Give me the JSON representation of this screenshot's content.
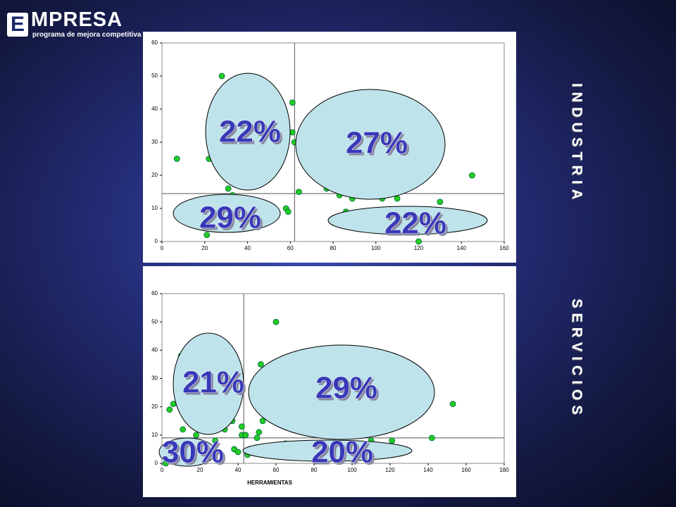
{
  "logo": {
    "letter": "E",
    "title": "MPRESA",
    "subtitle": "programa de mejora competitiva"
  },
  "side_labels": [
    "INDUSTRIA",
    "SERVICIOS"
  ],
  "chart_data": [
    {
      "type": "scatter",
      "color": "#22cc22",
      "x": [
        7,
        28,
        21,
        31,
        33,
        22,
        61,
        61,
        62,
        58,
        59,
        64,
        77,
        83,
        86,
        89,
        103,
        110,
        128,
        130,
        145,
        120
      ],
      "y": [
        25,
        50,
        2,
        16,
        14,
        25,
        42,
        33,
        30,
        10,
        9,
        15,
        16,
        14,
        9,
        13,
        13,
        13,
        24,
        12,
        20,
        0
      ],
      "xlim": [
        0,
        160
      ],
      "ylim": [
        0,
        60
      ],
      "xticks": [
        0,
        20,
        40,
        60,
        80,
        100,
        120,
        140,
        160
      ],
      "yticks": [
        0,
        10,
        20,
        30,
        40,
        50,
        60
      ],
      "reference_x": 62,
      "reference_y": 14.5,
      "annotations": [
        "22%",
        "27%",
        "29%",
        "22%"
      ]
    },
    {
      "type": "scatter",
      "color": "#22cc22",
      "x_label": "HERRAMIENTAS",
      "x": [
        60,
        4,
        6,
        10,
        11,
        18,
        28,
        33,
        37,
        42,
        42,
        44,
        52,
        53,
        51,
        50,
        38,
        40,
        45,
        65,
        80,
        110,
        121,
        142,
        153,
        2
      ],
      "y": [
        50,
        19,
        21,
        38,
        12,
        10,
        8,
        12,
        15,
        13,
        10,
        10,
        35,
        15,
        11,
        9,
        5,
        4,
        3,
        7,
        7,
        8,
        8,
        9,
        21,
        0
      ],
      "xlim": [
        0,
        180
      ],
      "ylim": [
        0,
        60
      ],
      "xticks": [
        0,
        20,
        40,
        60,
        80,
        100,
        120,
        140,
        160,
        180
      ],
      "yticks": [
        0,
        10,
        20,
        30,
        40,
        50,
        60
      ],
      "reference_x": 43,
      "reference_y": 9,
      "annotations": [
        "21%",
        "29%",
        "30%",
        "20%"
      ]
    }
  ]
}
